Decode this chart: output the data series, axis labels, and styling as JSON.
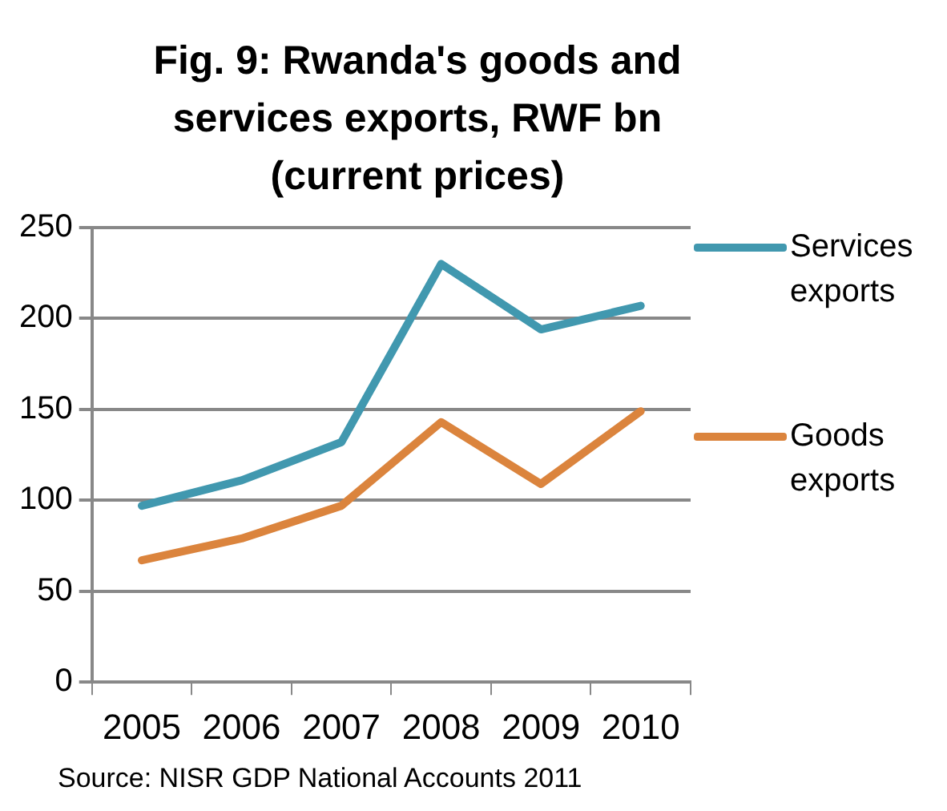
{
  "chart_data": {
    "type": "line",
    "title": "Fig. 9: Rwanda's goods and services exports, RWF bn (current prices)",
    "categories": [
      "2005",
      "2006",
      "2007",
      "2008",
      "2009",
      "2010"
    ],
    "series": [
      {
        "name": "Services exports",
        "color": "#4198af",
        "values": [
          97,
          111,
          132,
          230,
          194,
          207
        ]
      },
      {
        "name": "Goods exports",
        "color": "#db843d",
        "values": [
          67,
          79,
          97,
          143,
          109,
          149
        ]
      }
    ],
    "ylim": [
      0,
      250
    ],
    "yticks": [
      0,
      50,
      100,
      150,
      200,
      250
    ],
    "grid": "y",
    "legend": "right",
    "marker": "none",
    "line_style": "solid",
    "annotations": [
      "Source: NISR GDP National Accounts 2011"
    ]
  }
}
